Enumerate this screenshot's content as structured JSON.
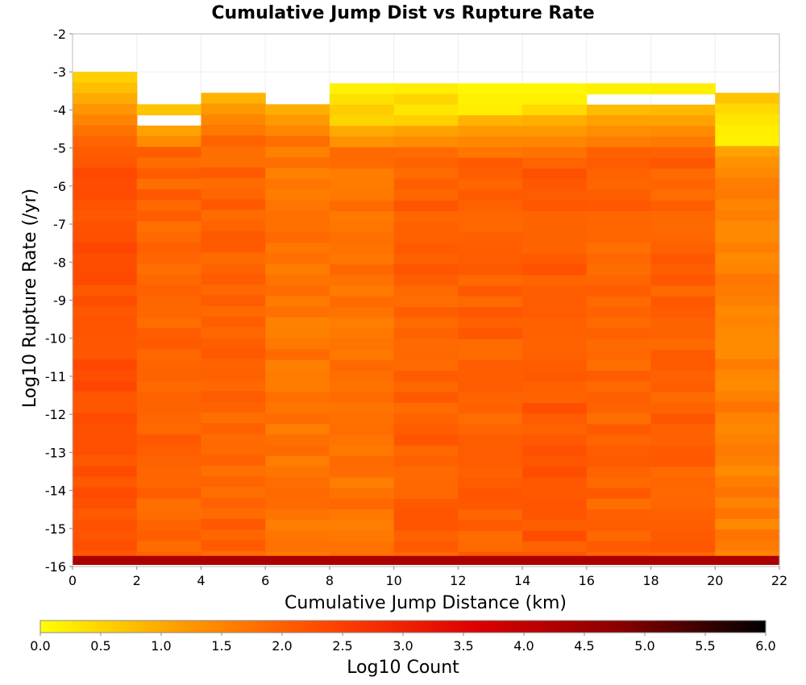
{
  "chart_data": {
    "type": "heatmap",
    "title": "Cumulative Jump Dist vs Rupture Rate",
    "xlabel": "Cumulative Jump Distance (km)",
    "ylabel": "Log10 Rupture Rate (/yr)",
    "colorbar_label": "Log10 Count",
    "xlim": [
      0,
      22
    ],
    "ylim": [
      -16,
      -2
    ],
    "x_ticks": [
      "0",
      "2",
      "4",
      "6",
      "8",
      "10",
      "12",
      "14",
      "16",
      "18",
      "20",
      "22"
    ],
    "y_ticks": [
      "-2",
      "-3",
      "-4",
      "-5",
      "-6",
      "-7",
      "-8",
      "-9",
      "-10",
      "-11",
      "-12",
      "-13",
      "-14",
      "-15",
      "-16"
    ],
    "colorbar_ticks": [
      "0.0",
      "0.5",
      "1.0",
      "1.5",
      "2.0",
      "2.5",
      "3.0",
      "3.5",
      "4.0",
      "4.5",
      "5.0",
      "5.5",
      "6.0"
    ],
    "colorbar_range": [
      0,
      6
    ],
    "colorscale": [
      "#ffff00",
      "#ff9900",
      "#ff4400",
      "#dd0000",
      "#880000",
      "#000000"
    ],
    "x_bin_width": 2,
    "y_bin_height": 0.28,
    "bottom_row_log10_count": 4.3,
    "columns": [
      {
        "x": 1,
        "ymax": -3.0,
        "base": 2.2,
        "top_vals": [
          0.55,
          0.75,
          1.0,
          1.25,
          1.5,
          1.75,
          1.95
        ]
      },
      {
        "x": 3,
        "ymax": -3.85,
        "base": 1.95,
        "top_vals": [
          0.7,
          0.9,
          1.1,
          1.4
        ],
        "gaps": [
          [
            -4.45,
            -4.1
          ]
        ]
      },
      {
        "x": 5,
        "ymax": -3.55,
        "base": 1.95,
        "top_vals": [
          0.9,
          1.2,
          1.45,
          1.65
        ]
      },
      {
        "x": 7,
        "ymax": -3.85,
        "base": 1.7,
        "top_vals": [
          0.95,
          1.2,
          1.45
        ]
      },
      {
        "x": 9,
        "ymax": -3.3,
        "base": 1.75,
        "top_vals": [
          0.15,
          0.35,
          0.6,
          0.5,
          1.0,
          1.3
        ]
      },
      {
        "x": 11,
        "ymax": -3.3,
        "base": 2.0,
        "top_vals": [
          0.2,
          0.5,
          0.3,
          0.55,
          1.1,
          1.4
        ]
      },
      {
        "x": 13,
        "ymax": -3.3,
        "base": 2.0,
        "top_vals": [
          0.1,
          0.15,
          0.2,
          0.9,
          1.2,
          1.45,
          1.7
        ]
      },
      {
        "x": 15,
        "ymax": -3.3,
        "base": 2.1,
        "top_vals": [
          0.1,
          0.15,
          0.45,
          0.95,
          1.2,
          1.5,
          1.75
        ]
      },
      {
        "x": 17,
        "ymax": -3.3,
        "base": 1.95,
        "top_vals": [
          0.15,
          0.6,
          0.8,
          1.1,
          1.35,
          1.6
        ],
        "gaps": [
          [
            -3.85,
            -3.55
          ]
        ]
      },
      {
        "x": 19,
        "ymax": -3.3,
        "base": 2.0,
        "top_vals": [
          0.2,
          0.6,
          0.85,
          1.1,
          1.4,
          1.65
        ],
        "gaps": [
          [
            -3.85,
            -3.55
          ]
        ]
      },
      {
        "x": 21,
        "ymax": -3.55,
        "base": 1.55,
        "top_vals": [
          0.7,
          0.45,
          0.3,
          0.2,
          0.15,
          1.1,
          1.3
        ]
      }
    ]
  }
}
